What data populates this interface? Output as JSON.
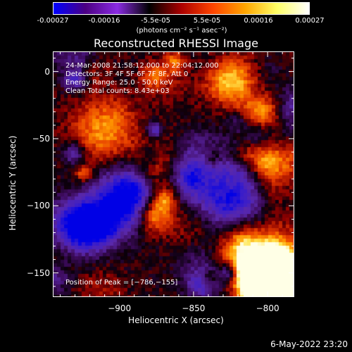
{
  "colorbar": {
    "ticks": [
      "-0.00027",
      "-0.00016",
      "-5.5e-05",
      "5.5e-05",
      "0.00016",
      "0.00027"
    ],
    "unit_label": "(photons cm⁻² s⁻¹ asec⁻²)",
    "colors": [
      "#0000ff",
      "#4b0082",
      "#8a2be2",
      "#000000",
      "#aa0000",
      "#ff4500",
      "#ffa500",
      "#ffff66",
      "#ffffff"
    ]
  },
  "chart_data": {
    "type": "heatmap",
    "title": "Reconstructed RHESSI Image",
    "xlabel": "Heliocentric X (arcsec)",
    "ylabel": "Heliocentric Y (arcsec)",
    "xlim": [
      -945,
      -782
    ],
    "ylim": [
      -168,
      15
    ],
    "xticks": [
      -900,
      -850,
      -800
    ],
    "yticks": [
      0,
      -50,
      -100,
      -150
    ],
    "xtick_labels": [
      "−900",
      "−850",
      "−800"
    ],
    "ytick_labels": [
      "0",
      "−50",
      "−100",
      "−150"
    ],
    "annotations": [
      "24-Mar-2008 21:58:12.000 to 22:04:12.000",
      "Detectors: 3F 4F 5F 6F 7F 8F, Att 0",
      "Energy Range: 25.0 - 50.0 keV",
      "Clean    Total counts: 8.43e+03"
    ],
    "peak_label": "Position of Peak = [−786,−155]",
    "peak": [
      -786,
      -155
    ]
  },
  "timestamp": "6-May-2022 23:20"
}
